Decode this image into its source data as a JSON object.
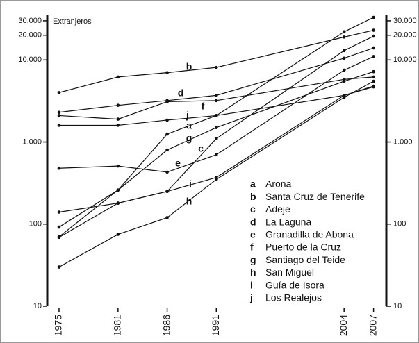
{
  "chart_data": {
    "type": "line",
    "y_label": "Extranjeros",
    "log_scale": true,
    "color": "#111111",
    "x": [
      1975,
      1981,
      1986,
      1991,
      2004,
      2007
    ],
    "xlim": [
      1973.8,
      2008.3
    ],
    "ylim": [
      10,
      35000
    ],
    "yticks": [
      10,
      100,
      {
        "value": 1000,
        "label": "1.000"
      },
      {
        "value": 10000,
        "label": "10.000"
      },
      {
        "value": 20000,
        "label": "20.000"
      },
      {
        "value": 30000,
        "label": "30.000"
      }
    ],
    "series": [
      {
        "key": "a",
        "name": "Arona",
        "values": [
          70,
          260,
          1250,
          2100,
          22000,
          33000
        ]
      },
      {
        "key": "b",
        "name": "Santa Cruz de Tenerife",
        "values": [
          4000,
          6200,
          7000,
          8100,
          19000,
          23000
        ]
      },
      {
        "key": "c",
        "name": "Adeje",
        "values": [
          69,
          180,
          250,
          1100,
          13000,
          19500
        ]
      },
      {
        "key": "d",
        "name": "La Laguna",
        "values": [
          2300,
          2800,
          3200,
          3700,
          10500,
          14000
        ]
      },
      {
        "key": "e",
        "name": "Granadilla de Abona",
        "values": [
          480,
          510,
          430,
          700,
          7500,
          11000
        ]
      },
      {
        "key": "f",
        "name": "Puerto de la Cruz",
        "values": [
          2100,
          1900,
          3100,
          3200,
          5800,
          6200
        ]
      },
      {
        "key": "g",
        "name": "Santiago del Teide",
        "values": [
          92,
          260,
          800,
          1500,
          5500,
          7200
        ]
      },
      {
        "key": "h",
        "name": "San Miguel",
        "values": [
          30,
          75,
          120,
          350,
          3500,
          5500
        ]
      },
      {
        "key": "i",
        "name": "Guía de Isora",
        "values": [
          140,
          180,
          250,
          370,
          3700,
          4700
        ]
      },
      {
        "key": "j",
        "name": "Los Realejos",
        "values": [
          1600,
          1600,
          1850,
          2100,
          3700,
          4800
        ]
      }
    ]
  }
}
